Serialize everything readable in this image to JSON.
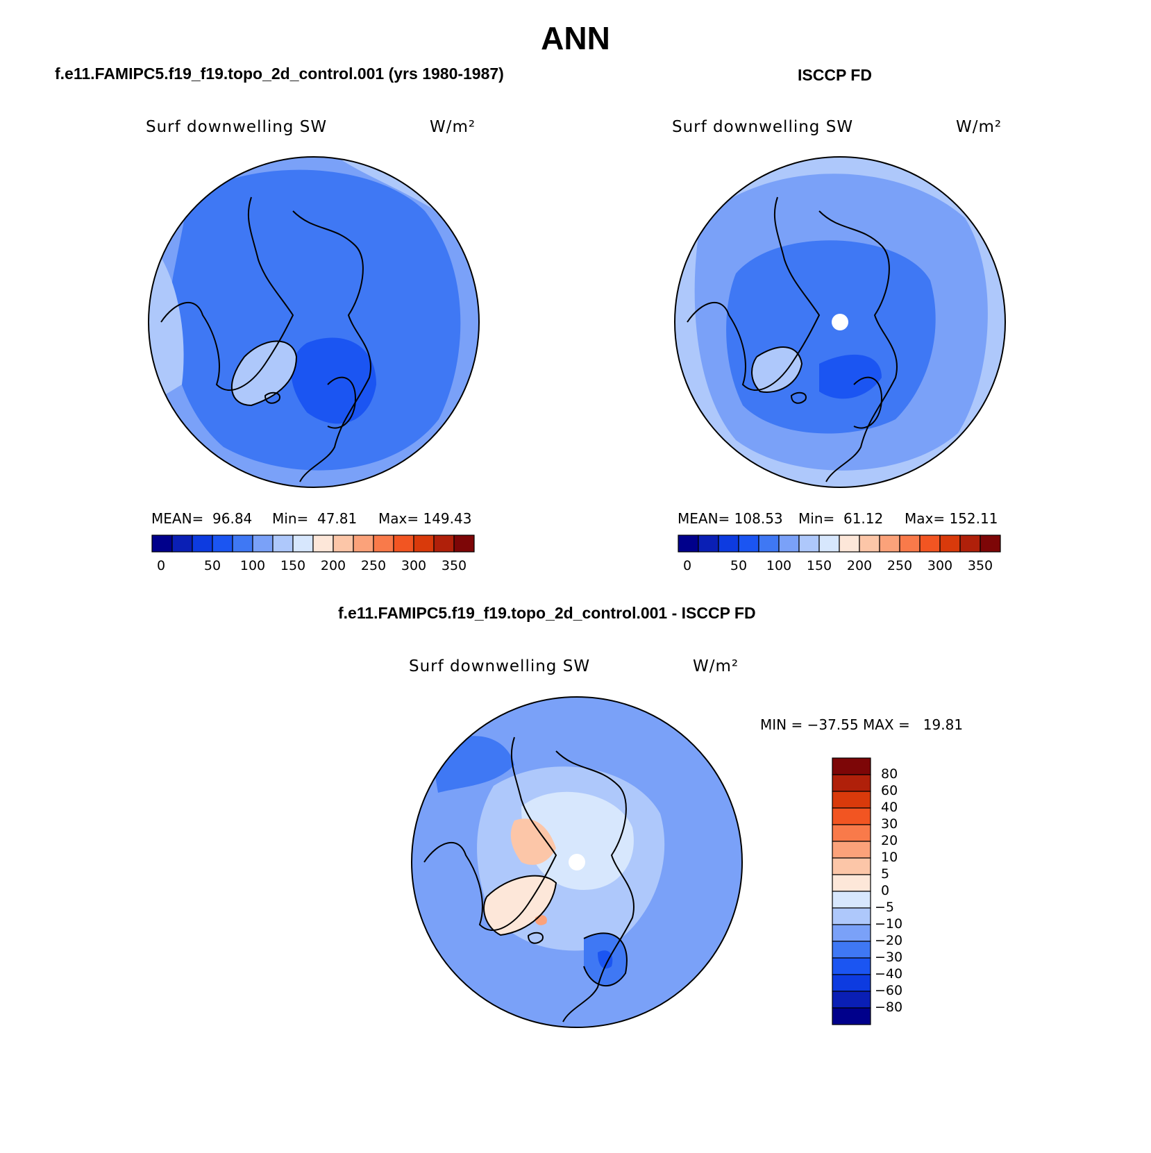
{
  "title": "ANN",
  "panels": [
    {
      "id": "model",
      "header": "f.e11.FAMIPC5.f19_f19.topo_2d_control.001 (yrs 1980-1987)",
      "variable": "Surf downwelling SW",
      "units": "W/m²",
      "stats": {
        "mean_label": "MEAN=",
        "mean": "96.84",
        "min_label": "Min=",
        "min": "47.81",
        "max_label": "Max=",
        "max": "149.43"
      }
    },
    {
      "id": "obs",
      "header": "ISCCP FD",
      "variable": "Surf downwelling SW",
      "units": "W/m²",
      "stats": {
        "mean_label": "MEAN=",
        "mean": "108.53",
        "min_label": "Min=",
        "min": "61.12",
        "max_label": "Max=",
        "max": "152.11"
      }
    },
    {
      "id": "diff",
      "header": "f.e11.FAMIPC5.f19_f19.topo_2d_control.001 - ISCCP FD",
      "variable": "Surf downwelling SW",
      "units": "W/m²",
      "minmax": "MIN = −37.55 MAX =   19.81"
    }
  ],
  "colorbar_abs": {
    "colors": [
      "#00008b",
      "#0a1fb5",
      "#0d3be0",
      "#1b55f2",
      "#3f78f4",
      "#7aa1f8",
      "#aec8fb",
      "#d7e7fd",
      "#fde7d9",
      "#fcc6a8",
      "#fba27a",
      "#f97a4a",
      "#f25522",
      "#d93a0b",
      "#b0200a",
      "#7d0607"
    ],
    "tick_labels": [
      "0",
      "50",
      "100",
      "150",
      "200",
      "250",
      "300",
      "350"
    ]
  },
  "colorbar_diff": {
    "colors_top_to_bottom": [
      "#7d0607",
      "#b0200a",
      "#d93a0b",
      "#f25522",
      "#f97a4a",
      "#fba27a",
      "#fcc6a8",
      "#fde7d9",
      "#d7e7fd",
      "#aec8fb",
      "#7aa1f8",
      "#3f78f4",
      "#1b55f2",
      "#0d3be0",
      "#0a1fb5",
      "#00008b"
    ],
    "tick_labels": [
      "80",
      "60",
      "40",
      "30",
      "20",
      "10",
      "5",
      "0",
      "−5",
      "−10",
      "−20",
      "−30",
      "−40",
      "−60",
      "−80"
    ]
  },
  "map_colors": {
    "level_70_100": "#3f78f4",
    "level_60_70": "#1b55f2",
    "level_100_120": "#7aa1f8",
    "level_120_150": "#aec8fb",
    "diff_bg": "#7aa1f8",
    "diff_minus10": "#aec8fb",
    "diff_minus5": "#d7e7fd",
    "diff_plus5": "#fde7d9",
    "diff_plus10": "#fcc6a8",
    "diff_minus30": "#3f78f4",
    "diff_minus40": "#1b55f2"
  }
}
